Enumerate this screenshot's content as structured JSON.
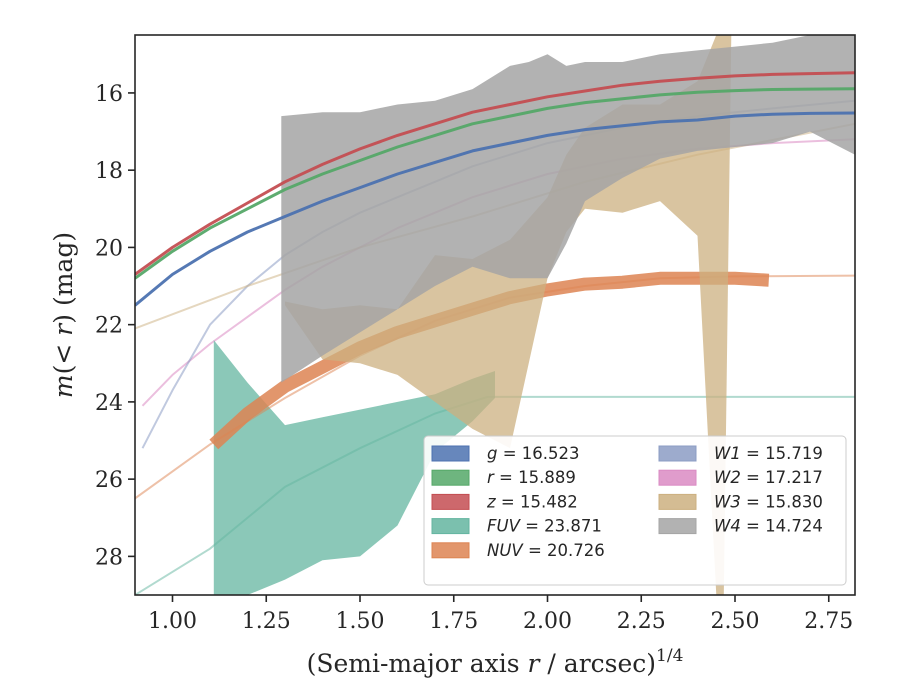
{
  "chart_data": {
    "type": "line",
    "xlabel": "(Semi-major axis r / arcsec)^1/4",
    "ylabel": "m(< r) (mag)",
    "xlim": [
      0.9,
      2.82
    ],
    "ylim": [
      29.0,
      14.5
    ],
    "y_inverted": true,
    "xticks": [
      "1.00",
      "1.25",
      "1.50",
      "1.75",
      "2.00",
      "2.25",
      "2.50",
      "2.75"
    ],
    "yticks": [
      "16",
      "18",
      "20",
      "22",
      "24",
      "26",
      "28"
    ],
    "legend_position": "lower-right",
    "legend_columns": 2,
    "series": [
      {
        "name": "g = 16.523",
        "color": "#4c72b0",
        "type": "line",
        "x": [
          0.9,
          1.0,
          1.1,
          1.2,
          1.3,
          1.4,
          1.5,
          1.6,
          1.7,
          1.8,
          1.9,
          2.0,
          2.1,
          2.2,
          2.3,
          2.4,
          2.5,
          2.6,
          2.7,
          2.82
        ],
        "y": [
          21.5,
          20.7,
          20.1,
          19.6,
          19.2,
          18.8,
          18.45,
          18.1,
          17.8,
          17.5,
          17.3,
          17.1,
          16.95,
          16.85,
          16.75,
          16.7,
          16.6,
          16.55,
          16.53,
          16.52
        ]
      },
      {
        "name": "r = 15.889",
        "color": "#55a868",
        "type": "line",
        "x": [
          0.9,
          1.0,
          1.1,
          1.2,
          1.3,
          1.4,
          1.5,
          1.6,
          1.7,
          1.8,
          1.9,
          2.0,
          2.1,
          2.2,
          2.3,
          2.4,
          2.5,
          2.6,
          2.7,
          2.82
        ],
        "y": [
          20.8,
          20.1,
          19.5,
          19.0,
          18.5,
          18.1,
          17.75,
          17.4,
          17.1,
          16.8,
          16.6,
          16.4,
          16.25,
          16.15,
          16.05,
          15.98,
          15.94,
          15.91,
          15.9,
          15.89
        ]
      },
      {
        "name": "z = 15.482",
        "color": "#c44e52",
        "type": "line",
        "x": [
          0.9,
          1.0,
          1.1,
          1.2,
          1.3,
          1.4,
          1.5,
          1.6,
          1.7,
          1.8,
          1.9,
          2.0,
          2.1,
          2.2,
          2.3,
          2.4,
          2.5,
          2.6,
          2.7,
          2.82
        ],
        "y": [
          20.7,
          20.0,
          19.4,
          18.85,
          18.3,
          17.85,
          17.45,
          17.1,
          16.8,
          16.5,
          16.3,
          16.1,
          15.95,
          15.8,
          15.7,
          15.62,
          15.56,
          15.52,
          15.5,
          15.48
        ]
      },
      {
        "name": "FUV = 23.871",
        "color": "#64b5a0",
        "type": "band",
        "x": [
          1.11,
          1.2,
          1.3,
          1.4,
          1.5,
          1.6,
          1.7,
          1.8,
          1.86
        ],
        "y_upper": [
          22.4,
          23.5,
          24.6,
          24.4,
          24.2,
          24.0,
          23.8,
          23.4,
          23.2
        ],
        "y_lower": [
          29.0,
          29.0,
          28.6,
          28.1,
          28.0,
          27.2,
          25.3,
          24.5,
          23.9
        ],
        "model_line": {
          "x": [
            0.9,
            1.1,
            1.3,
            1.5,
            1.7,
            1.84,
            2.82
          ],
          "y": [
            29.0,
            27.8,
            26.2,
            25.2,
            24.3,
            23.87,
            23.87
          ]
        }
      },
      {
        "name": "NUV = 20.726",
        "color": "#dd8452",
        "type": "band",
        "x": [
          1.11,
          1.2,
          1.3,
          1.4,
          1.5,
          1.6,
          1.7,
          1.8,
          1.9,
          2.0,
          2.1,
          2.2,
          2.3,
          2.4,
          2.5,
          2.59
        ],
        "y": [
          25.1,
          24.3,
          23.6,
          23.1,
          22.6,
          22.2,
          21.9,
          21.6,
          21.3,
          21.1,
          20.95,
          20.9,
          20.8,
          20.8,
          20.8,
          20.85
        ],
        "model_line": {
          "x": [
            0.9,
            1.1,
            1.3,
            1.5,
            1.7,
            1.9,
            2.1,
            2.3,
            2.5,
            2.82
          ],
          "y": [
            26.5,
            25.1,
            23.9,
            22.8,
            21.9,
            21.3,
            21.0,
            20.8,
            20.75,
            20.73
          ]
        }
      },
      {
        "name": "W1 = 15.719",
        "color": "#8c9cc4",
        "type": "line",
        "x": [
          0.92,
          1.0,
          1.1,
          1.2,
          1.3,
          1.4,
          1.5,
          1.6,
          1.7,
          1.8,
          1.9,
          2.0,
          2.2,
          2.4,
          2.6,
          2.82
        ],
        "y": [
          25.2,
          23.7,
          22.0,
          21.0,
          20.2,
          19.6,
          19.1,
          18.7,
          18.3,
          17.9,
          17.6,
          17.3,
          16.9,
          16.6,
          16.4,
          16.2
        ]
      },
      {
        "name": "W2 = 17.217",
        "color": "#da8bc3",
        "type": "line",
        "x": [
          0.92,
          1.0,
          1.1,
          1.2,
          1.3,
          1.4,
          1.5,
          1.6,
          1.7,
          1.8,
          1.9,
          2.0,
          2.2,
          2.4,
          2.6,
          2.82
        ],
        "y": [
          24.1,
          23.3,
          22.5,
          21.8,
          21.1,
          20.5,
          20.0,
          19.5,
          19.1,
          18.7,
          18.4,
          18.1,
          17.7,
          17.45,
          17.3,
          17.2
        ]
      },
      {
        "name": "W3 = 15.830",
        "color": "#ccb080",
        "type": "band",
        "x": [
          1.3,
          1.4,
          1.5,
          1.6,
          1.7,
          1.8,
          1.9,
          2.0,
          2.05,
          2.1,
          2.2,
          2.3,
          2.4,
          2.45,
          2.47,
          2.49
        ],
        "y_upper": [
          21.4,
          21.6,
          21.5,
          21.6,
          20.2,
          20.3,
          19.8,
          18.7,
          17.6,
          16.9,
          16.3,
          16.3,
          15.7,
          14.5,
          14.5,
          14.5
        ],
        "y_lower": [
          21.5,
          22.9,
          23.0,
          23.3,
          24.0,
          24.7,
          25.2,
          20.8,
          19.6,
          19.0,
          19.1,
          18.8,
          19.7,
          29.0,
          29.0,
          14.5
        ],
        "model_line": {
          "x": [
            0.9,
            1.2,
            1.5,
            1.8,
            2.1,
            2.4,
            2.82
          ],
          "y": [
            22.1,
            21.0,
            20.0,
            19.2,
            18.3,
            17.6,
            16.8
          ]
        }
      },
      {
        "name": "W4 = 14.724",
        "color": "#a5a5a5",
        "type": "band",
        "x": [
          1.29,
          1.4,
          1.5,
          1.6,
          1.7,
          1.8,
          1.9,
          1.95,
          2.0,
          2.05,
          2.1,
          2.2,
          2.3,
          2.4,
          2.5,
          2.6,
          2.7,
          2.8,
          2.82
        ],
        "y_upper": [
          16.6,
          16.5,
          16.5,
          16.3,
          16.2,
          15.9,
          15.3,
          15.2,
          15.0,
          15.3,
          15.2,
          15.2,
          15.0,
          14.9,
          14.8,
          14.7,
          14.5,
          14.5,
          14.5
        ],
        "y_lower": [
          23.5,
          22.8,
          22.2,
          21.6,
          21.0,
          20.5,
          20.8,
          20.8,
          20.8,
          19.9,
          18.8,
          18.2,
          17.7,
          17.5,
          17.4,
          17.3,
          17.0,
          17.5,
          17.6
        ]
      }
    ]
  }
}
